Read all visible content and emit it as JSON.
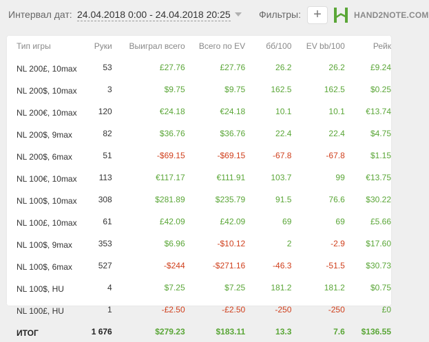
{
  "header": {
    "date_label": "Интервал дат:",
    "date_range": "24.04.2018 0:00 - 24.04.2018 20:25",
    "filters_label": "Фильтры:",
    "add_filter": "+",
    "logo_text": "HAND2NOTE.COM"
  },
  "colors": {
    "positive": "#5aa637",
    "negative": "#d0401d",
    "logo": "#5aa637"
  },
  "table": {
    "columns": [
      "Тип игры",
      "Руки",
      "Выиграл всего",
      "Всего по EV",
      "бб/100",
      "EV bb/100",
      "Рейк"
    ],
    "rows": [
      {
        "game": "NL 200£, 10max",
        "hands": "53",
        "won": "£27.76",
        "ev": "£27.76",
        "bb100": "26.2",
        "evbb100": "26.2",
        "rake": "£9.24",
        "sign": [
          "pos",
          "pos",
          "pos",
          "pos",
          "pos"
        ]
      },
      {
        "game": "NL 200$, 10max",
        "hands": "3",
        "won": "$9.75",
        "ev": "$9.75",
        "bb100": "162.5",
        "evbb100": "162.5",
        "rake": "$0.25",
        "sign": [
          "pos",
          "pos",
          "pos",
          "pos",
          "pos"
        ]
      },
      {
        "game": "NL 200€, 10max",
        "hands": "120",
        "won": "€24.18",
        "ev": "€24.18",
        "bb100": "10.1",
        "evbb100": "10.1",
        "rake": "€13.74",
        "sign": [
          "pos",
          "pos",
          "pos",
          "pos",
          "pos"
        ]
      },
      {
        "game": "NL 200$, 9max",
        "hands": "82",
        "won": "$36.76",
        "ev": "$36.76",
        "bb100": "22.4",
        "evbb100": "22.4",
        "rake": "$4.75",
        "sign": [
          "pos",
          "pos",
          "pos",
          "pos",
          "pos"
        ]
      },
      {
        "game": "NL 200$, 6max",
        "hands": "51",
        "won": "-$69.15",
        "ev": "-$69.15",
        "bb100": "-67.8",
        "evbb100": "-67.8",
        "rake": "$1.15",
        "sign": [
          "neg",
          "neg",
          "neg",
          "neg",
          "pos"
        ]
      },
      {
        "game": "NL 100€, 10max",
        "hands": "113",
        "won": "€117.17",
        "ev": "€111.91",
        "bb100": "103.7",
        "evbb100": "99",
        "rake": "€13.75",
        "sign": [
          "pos",
          "pos",
          "pos",
          "pos",
          "pos"
        ]
      },
      {
        "game": "NL 100$, 10max",
        "hands": "308",
        "won": "$281.89",
        "ev": "$235.79",
        "bb100": "91.5",
        "evbb100": "76.6",
        "rake": "$30.22",
        "sign": [
          "pos",
          "pos",
          "pos",
          "pos",
          "pos"
        ]
      },
      {
        "game": "NL 100£, 10max",
        "hands": "61",
        "won": "£42.09",
        "ev": "£42.09",
        "bb100": "69",
        "evbb100": "69",
        "rake": "£5.66",
        "sign": [
          "pos",
          "pos",
          "pos",
          "pos",
          "pos"
        ]
      },
      {
        "game": "NL 100$, 9max",
        "hands": "353",
        "won": "$6.96",
        "ev": "-$10.12",
        "bb100": "2",
        "evbb100": "-2.9",
        "rake": "$17.60",
        "sign": [
          "pos",
          "neg",
          "pos",
          "neg",
          "pos"
        ]
      },
      {
        "game": "NL 100$, 6max",
        "hands": "527",
        "won": "-$244",
        "ev": "-$271.16",
        "bb100": "-46.3",
        "evbb100": "-51.5",
        "rake": "$30.73",
        "sign": [
          "neg",
          "neg",
          "neg",
          "neg",
          "pos"
        ]
      },
      {
        "game": "NL 100$, HU",
        "hands": "4",
        "won": "$7.25",
        "ev": "$7.25",
        "bb100": "181.2",
        "evbb100": "181.2",
        "rake": "$0.75",
        "sign": [
          "pos",
          "pos",
          "pos",
          "pos",
          "pos"
        ]
      },
      {
        "game": "NL 100£, HU",
        "hands": "1",
        "won": "-£2.50",
        "ev": "-£2.50",
        "bb100": "-250",
        "evbb100": "-250",
        "rake": "£0",
        "sign": [
          "neg",
          "neg",
          "neg",
          "neg",
          "pos"
        ]
      }
    ],
    "total": {
      "game": "ИТОГ",
      "hands": "1 676",
      "won": "$279.23",
      "ev": "$183.11",
      "bb100": "13.3",
      "evbb100": "7.6",
      "rake": "$136.55",
      "sign": [
        "pos",
        "pos",
        "pos",
        "pos",
        "pos"
      ]
    }
  }
}
